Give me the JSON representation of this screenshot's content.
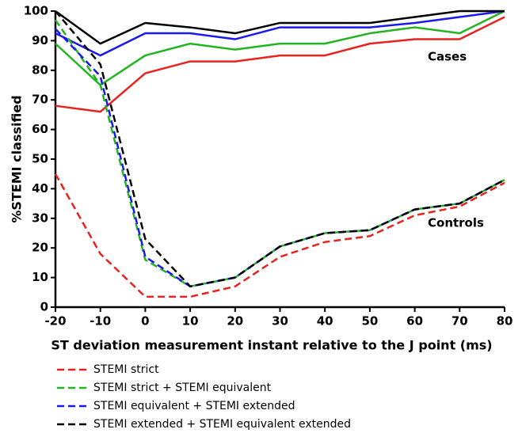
{
  "chart_data": {
    "type": "line",
    "x_label": "ST deviation measurement instant relative to the J point (ms)",
    "y_label": "%STEMI classified",
    "x": [
      -20,
      -10,
      0,
      10,
      20,
      30,
      40,
      50,
      60,
      70,
      80
    ],
    "xlim": [
      -20,
      80
    ],
    "xticks": [
      -20,
      -10,
      0,
      10,
      20,
      30,
      40,
      50,
      60,
      70,
      80
    ],
    "ylim": [
      0,
      100
    ],
    "yticks": [
      0,
      10,
      20,
      30,
      40,
      50,
      60,
      70,
      80,
      90,
      100
    ],
    "annotations": [
      "Cases",
      "Controls"
    ],
    "series": [
      {
        "name": "STEMI strict",
        "color": "#e8231f",
        "values": [
          45,
          18,
          3.5,
          3.5,
          7,
          17,
          22,
          24,
          31,
          34,
          42
        ],
        "cases": [
          68,
          66,
          79,
          83,
          83,
          85,
          85,
          89,
          90.5,
          90.5,
          98
        ]
      },
      {
        "name": "STEMI strict + STEMI equivalent",
        "color": "#22b522",
        "values": [
          97,
          75,
          16,
          7,
          10,
          20.5,
          25,
          26,
          33,
          35,
          43
        ],
        "cases": [
          89,
          75,
          85,
          89,
          87,
          89,
          89,
          92.5,
          94.5,
          92.5,
          100
        ]
      },
      {
        "name": "STEMI equivalent + STEMI extended",
        "color": "#1a1aee",
        "values": [
          94,
          78,
          17,
          7,
          10,
          20.5,
          25,
          26,
          33,
          35,
          43
        ],
        "cases": [
          92.5,
          85,
          92.5,
          92.5,
          90.5,
          94.5,
          94.5,
          94.5,
          96,
          98,
          100
        ]
      },
      {
        "name": "STEMI extended + STEMI equivalent extended",
        "color": "#000000",
        "values": [
          100,
          82,
          23,
          7,
          10,
          20.5,
          25,
          26,
          33,
          35,
          43
        ],
        "cases": [
          100,
          89,
          96,
          94.5,
          92.5,
          96,
          96,
          96,
          98,
          100,
          100
        ]
      }
    ]
  }
}
